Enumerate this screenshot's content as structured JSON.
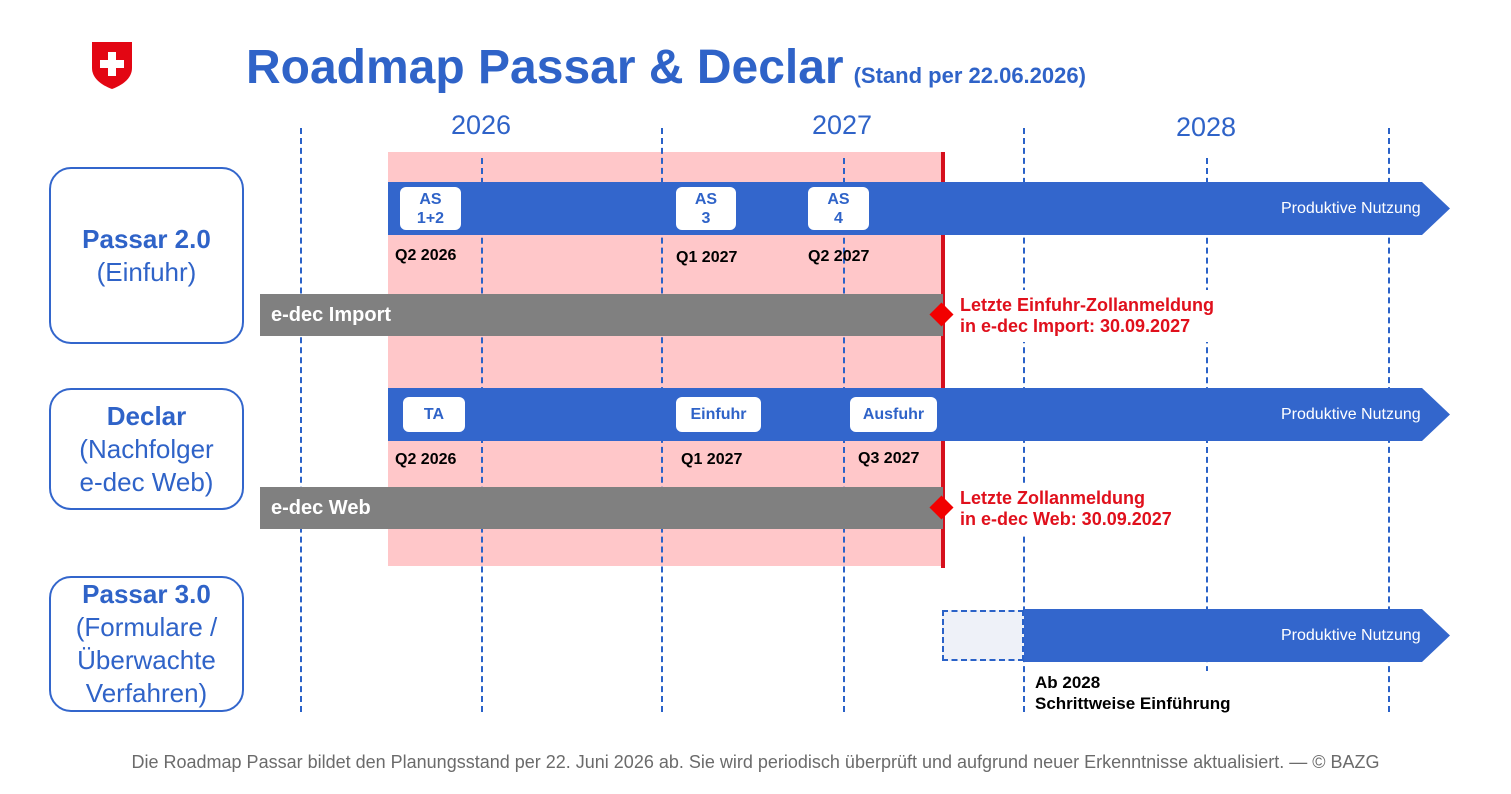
{
  "header": {
    "title": "Roadmap Passar & Declar",
    "stand": "(Stand per 22.06.2026)"
  },
  "years": [
    "2026",
    "2027",
    "2028"
  ],
  "rows": {
    "passar2": {
      "label_title": "Passar 2.0",
      "label_sub": "(Einfuhr)",
      "arrow_text": "Produktive Nutzung",
      "milestones": [
        {
          "line1": "AS",
          "line2": "1+2",
          "quarter": "Q2 2026"
        },
        {
          "line1": "AS",
          "line2": "3",
          "quarter": "Q1 2027"
        },
        {
          "line1": "AS",
          "line2": "4",
          "quarter": "Q2 2027"
        }
      ],
      "legacy_bar": "e-dec Import",
      "end_note_line1": "Letzte Einfuhr-Zollanmeldung",
      "end_note_line2": "in e-dec Import: 30.09.2027"
    },
    "declar": {
      "label_title": "Declar",
      "label_sub1": "(Nachfolger",
      "label_sub2": "e-dec Web)",
      "arrow_text": "Produktive Nutzung",
      "milestones": [
        {
          "label": "TA",
          "quarter": "Q2 2026"
        },
        {
          "label": "Einfuhr",
          "quarter": "Q1 2027"
        },
        {
          "label": "Ausfuhr",
          "quarter": "Q3 2027"
        }
      ],
      "legacy_bar": "e-dec Web",
      "end_note_line1": "Letzte Zollanmeldung",
      "end_note_line2": "in e-dec Web: 30.09.2027"
    },
    "passar3": {
      "label_title": "Passar 3.0",
      "label_sub1": "(Formulare /",
      "label_sub2": "Überwachte",
      "label_sub3": "Verfahren)",
      "arrow_text": "Produktive Nutzung",
      "note_line1": "Ab 2028",
      "note_line2": "Schrittweise Einführung"
    }
  },
  "colors": {
    "brand_blue": "#3366cc",
    "deadline_red": "#d60f1c",
    "period_pink": "#ffc7c9",
    "legacy_grey": "#808080",
    "swiss_red": "#e30613"
  },
  "footer": "Die Roadmap Passar bildet den Planungsstand per 22. Juni 2026 ab. Sie wird periodisch überprüft und aufgrund neuer Erkenntnisse aktualisiert. — © BAZG"
}
